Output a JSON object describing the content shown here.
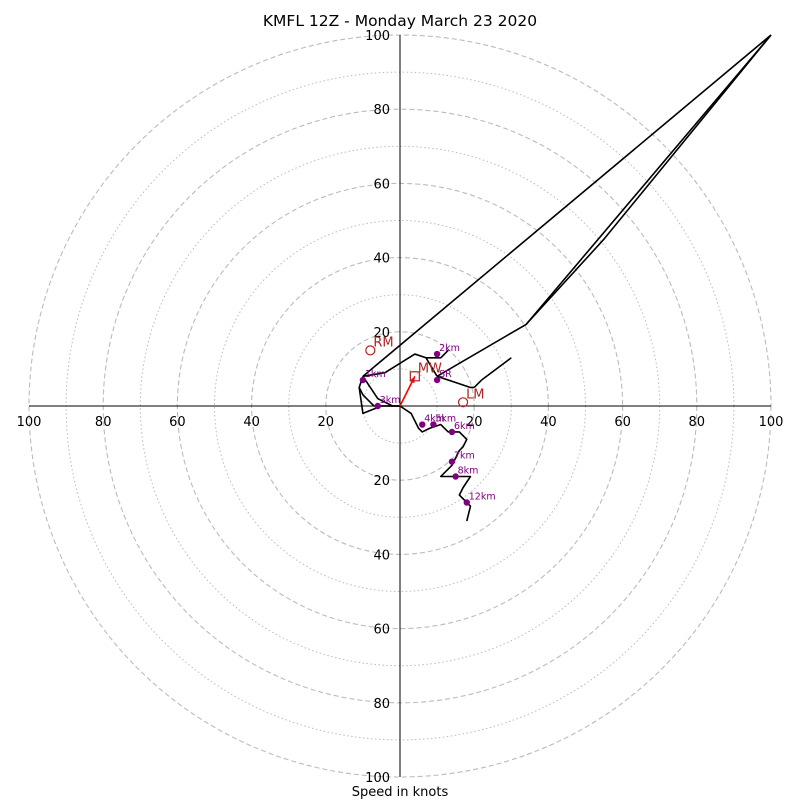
{
  "chart_data": {
    "type": "hodograph",
    "title": "KMFL 12Z - Monday March 23 2020",
    "xlabel": "Speed in knots",
    "units": "knots",
    "max_speed": 100,
    "major_rings": [
      20,
      40,
      60,
      80,
      100
    ],
    "minor_rings": [
      10,
      30,
      50,
      70,
      90
    ],
    "axis_tick_labels": [
      "20",
      "40",
      "60",
      "80",
      "100"
    ],
    "grid": true,
    "hodograph_trace": [
      [
        0,
        0
      ],
      [
        3,
        -2
      ],
      [
        4,
        -4
      ],
      [
        5,
        -6
      ],
      [
        6,
        -7
      ],
      [
        8,
        -6
      ],
      [
        11,
        -5
      ],
      [
        12,
        -6
      ],
      [
        13,
        -7
      ],
      [
        14,
        -7
      ],
      [
        16,
        -7
      ],
      [
        17,
        -8
      ],
      [
        18,
        -9
      ],
      [
        17,
        -11
      ],
      [
        16,
        -12
      ],
      [
        15,
        -14
      ],
      [
        14,
        -16
      ],
      [
        11,
        -19
      ],
      [
        15,
        -19
      ],
      [
        19,
        -19
      ],
      [
        17,
        -22
      ],
      [
        16,
        -24
      ],
      [
        17,
        -25
      ],
      [
        18,
        -26
      ],
      [
        19,
        -27
      ],
      [
        18,
        -31
      ]
    ],
    "boundary_lines": [
      [
        [
          10,
          8
        ],
        [
          34,
          22
        ],
        [
          100,
          100
        ]
      ],
      [
        [
          -10,
          8
        ],
        [
          100,
          100
        ]
      ],
      [
        [
          10,
          8
        ],
        [
          7,
          13
        ],
        [
          4,
          14
        ],
        [
          -4,
          9
        ],
        [
          -10,
          8
        ]
      ],
      [
        [
          -10,
          8
        ],
        [
          -11,
          5
        ],
        [
          -10,
          3
        ],
        [
          -9,
          2
        ],
        [
          -8,
          1
        ],
        [
          -7,
          0
        ],
        [
          0,
          0
        ]
      ],
      [
        [
          -10,
          8
        ],
        [
          -8,
          5
        ],
        [
          -6,
          2
        ],
        [
          -4,
          1
        ],
        [
          -2,
          0
        ],
        [
          0,
          0
        ]
      ],
      [
        [
          -11,
          5
        ],
        [
          -10,
          -2
        ],
        [
          -5,
          0
        ],
        [
          0,
          0
        ]
      ],
      [
        [
          34,
          22
        ],
        [
          55,
          45
        ],
        [
          100,
          100
        ]
      ],
      [
        [
          10,
          8
        ],
        [
          19,
          5
        ],
        [
          20,
          5
        ]
      ],
      [
        [
          20,
          5
        ],
        [
          22,
          7
        ]
      ],
      [
        [
          22,
          7
        ],
        [
          30,
          13
        ]
      ],
      [
        [
          7,
          13
        ],
        [
          11,
          13
        ],
        [
          12,
          14
        ],
        [
          13,
          15
        ]
      ]
    ],
    "height_markers": [
      {
        "label": "1km",
        "u": -10,
        "v": 7
      },
      {
        "label": "2km",
        "u": 10,
        "v": 14
      },
      {
        "label": "3km",
        "u": -6,
        "v": 0
      },
      {
        "label": "4km",
        "u": 6,
        "v": -5
      },
      {
        "label": "5km",
        "u": 9,
        "v": -5
      },
      {
        "label": "6km",
        "u": 14,
        "v": -7
      },
      {
        "label": "7km",
        "u": 14,
        "v": -15
      },
      {
        "label": "8km",
        "u": 15,
        "v": -19
      },
      {
        "label": "12km",
        "u": 18,
        "v": -26
      },
      {
        "label": "SR",
        "u": 10,
        "v": 7
      }
    ],
    "motion_markers": [
      {
        "label": "RM",
        "u": -8,
        "v": 15,
        "symbol": "circle"
      },
      {
        "label": "LM",
        "u": 17,
        "v": 1,
        "symbol": "circle"
      },
      {
        "label": "MW",
        "u": 4,
        "v": 8,
        "symbol": "square"
      }
    ],
    "mean_wind_arrow": {
      "from": [
        0,
        0
      ],
      "to": [
        4,
        8
      ]
    },
    "colors": {
      "trace": "#000000",
      "height_markers": "#800080",
      "motion_markers": "#b22222",
      "arrow": "#ff0000",
      "grid": "#bbbbbb"
    }
  }
}
